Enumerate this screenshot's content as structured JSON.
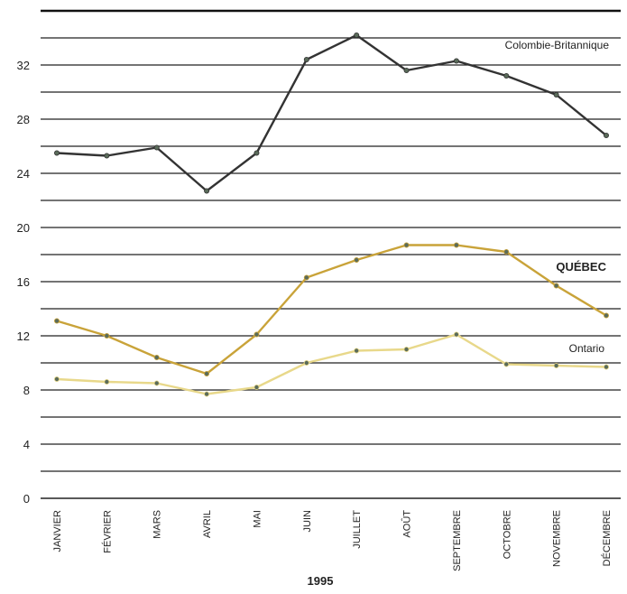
{
  "chart_data": {
    "type": "line",
    "xlabel": "1995",
    "ylabel": "",
    "ylim": [
      0,
      36
    ],
    "yticks": [
      0,
      4,
      8,
      12,
      16,
      20,
      24,
      28,
      32
    ],
    "grid": true,
    "categories": [
      "JANVIER",
      "FÉVRIER",
      "MARS",
      "AVRIL",
      "MAI",
      "JUIN",
      "JUILLET",
      "AOÛT",
      "SEPTEMBRE",
      "OCTOBRE",
      "NOVEMBRE",
      "DÉCEMBRE"
    ],
    "series": [
      {
        "name": "Colombie-Britannique",
        "color": "#333333",
        "emphasis": false,
        "values": [
          25.5,
          25.3,
          25.9,
          22.7,
          25.5,
          32.4,
          34.2,
          31.6,
          32.3,
          31.2,
          29.8,
          26.8
        ]
      },
      {
        "name": "QUÉBEC",
        "color": "#c9a339",
        "emphasis": true,
        "values": [
          13.1,
          12.0,
          10.4,
          9.2,
          12.1,
          16.3,
          17.6,
          18.7,
          18.7,
          18.2,
          15.7,
          13.5
        ]
      },
      {
        "name": "Ontario",
        "color": "#e8d88a",
        "emphasis": false,
        "values": [
          8.8,
          8.6,
          8.5,
          7.7,
          8.2,
          10.0,
          10.9,
          11.0,
          12.1,
          9.9,
          9.8,
          9.7
        ]
      }
    ]
  }
}
